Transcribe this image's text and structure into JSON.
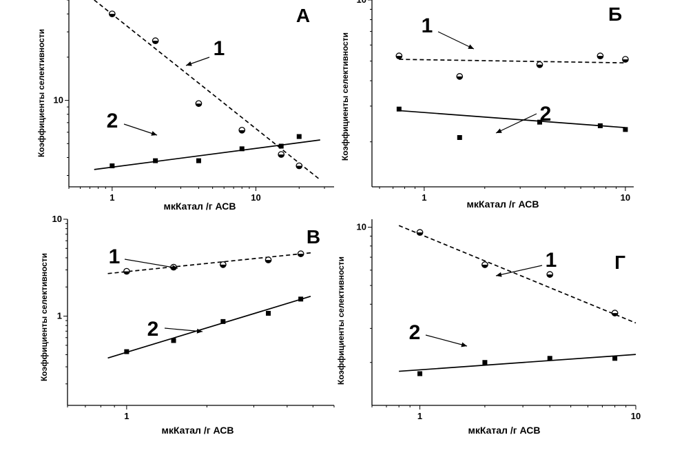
{
  "chart_data": [
    {
      "type": "scatter",
      "panel_label": "А",
      "xlabel": "мкКатал /г АСВ",
      "ylabel": "Коэффициенты селективности",
      "xscale": "log",
      "yscale": "log",
      "xlim": [
        0.5,
        35
      ],
      "ylim": [
        2.5,
        50
      ],
      "x_ticks": [
        1,
        10
      ],
      "x_tick_labels": [
        "1",
        "10"
      ],
      "y_ticks": [
        10
      ],
      "y_tick_labels": [
        "10"
      ],
      "series": [
        {
          "name": "1",
          "marker": "circle",
          "line": "dashed",
          "x": [
            1.0,
            2.0,
            4.0,
            8.0,
            15.0,
            20.0
          ],
          "y": [
            40,
            26,
            9.5,
            6.2,
            4.2,
            3.5
          ],
          "fit": {
            "x": [
              0.75,
              28
            ],
            "y": [
              50,
              2.8
            ]
          }
        },
        {
          "name": "2",
          "marker": "square",
          "line": "solid",
          "x": [
            1.0,
            2.0,
            4.0,
            8.0,
            15.0,
            20.0
          ],
          "y": [
            3.5,
            3.8,
            3.8,
            4.6,
            4.8,
            5.6
          ],
          "fit": {
            "x": [
              0.75,
              28
            ],
            "y": [
              3.3,
              5.3
            ]
          }
        }
      ]
    },
    {
      "type": "scatter",
      "panel_label": "Б",
      "xlabel": "мкКатал /г АСВ",
      "ylabel": "Коэффициенты селективности",
      "xscale": "log",
      "yscale": "log",
      "xlim": [
        0.55,
        11
      ],
      "ylim": [
        1.2,
        10
      ],
      "x_ticks": [
        1,
        10
      ],
      "x_tick_labels": [
        "1",
        "10"
      ],
      "y_ticks": [
        10
      ],
      "y_tick_labels": [
        "10"
      ],
      "series": [
        {
          "name": "1",
          "marker": "circle",
          "line": "dashed",
          "x": [
            0.75,
            1.5,
            3.75,
            7.5,
            10.0
          ],
          "y": [
            5.3,
            4.2,
            4.8,
            5.3,
            5.1
          ],
          "fit": {
            "x": [
              0.75,
              10
            ],
            "y": [
              5.1,
              4.9
            ]
          }
        },
        {
          "name": "2",
          "marker": "square",
          "line": "solid",
          "x": [
            0.75,
            1.5,
            3.75,
            7.5,
            10.0
          ],
          "y": [
            2.9,
            2.1,
            2.5,
            2.4,
            2.3
          ],
          "fit": {
            "x": [
              0.75,
              10
            ],
            "y": [
              2.85,
              2.35
            ]
          }
        }
      ]
    },
    {
      "type": "scatter",
      "panel_label": "В",
      "xlabel": "мкКатал /г АСВ",
      "ylabel": "Коэффициенты селективности",
      "xscale": "log",
      "yscale": "log",
      "xlim": [
        0.6,
        6
      ],
      "ylim": [
        0.12,
        10
      ],
      "x_ticks": [
        1
      ],
      "x_tick_labels": [
        "1"
      ],
      "y_ticks": [
        1,
        10
      ],
      "y_tick_labels": [
        "1",
        "10"
      ],
      "series": [
        {
          "name": "1",
          "marker": "circle",
          "line": "dashed",
          "x": [
            1.0,
            1.5,
            2.3,
            3.4,
            4.5
          ],
          "y": [
            2.9,
            3.2,
            3.4,
            3.8,
            4.4
          ],
          "fit": {
            "x": [
              0.85,
              4.9
            ],
            "y": [
              2.75,
              4.5
            ]
          }
        },
        {
          "name": "2",
          "marker": "square",
          "line": "solid",
          "x": [
            1.0,
            1.5,
            2.3,
            3.4,
            4.5
          ],
          "y": [
            0.43,
            0.56,
            0.88,
            1.07,
            1.5
          ],
          "fit": {
            "x": [
              0.85,
              4.9
            ],
            "y": [
              0.37,
              1.6
            ]
          }
        }
      ]
    },
    {
      "type": "scatter",
      "panel_label": "Г",
      "xlabel": "мкКатал /г АСВ",
      "ylabel": "Коэффициенты селективности",
      "xscale": "log",
      "yscale": "log",
      "xlim": [
        0.6,
        10
      ],
      "ylim": [
        1.2,
        11
      ],
      "x_ticks": [
        1,
        10
      ],
      "x_tick_labels": [
        "1",
        "10"
      ],
      "y_ticks": [
        10
      ],
      "y_tick_labels": [
        "10"
      ],
      "series": [
        {
          "name": "1",
          "marker": "circle",
          "line": "dashed",
          "x": [
            1.0,
            2.0,
            4.0,
            8.0
          ],
          "y": [
            9.4,
            6.4,
            5.7,
            3.6
          ],
          "fit": {
            "x": [
              0.8,
              10
            ],
            "y": [
              10.2,
              3.2
            ]
          }
        },
        {
          "name": "2",
          "marker": "square",
          "line": "solid",
          "x": [
            1.0,
            2.0,
            4.0,
            8.0
          ],
          "y": [
            1.75,
            2.0,
            2.1,
            2.1
          ],
          "fit": {
            "x": [
              0.8,
              10
            ],
            "y": [
              1.8,
              2.2
            ]
          }
        }
      ]
    }
  ]
}
